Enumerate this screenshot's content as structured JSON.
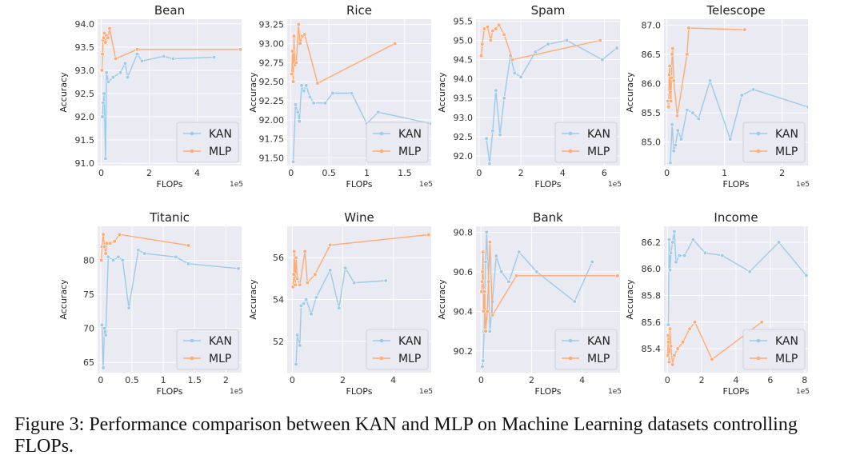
{
  "caption": "Figure 3: Performance comparison between KAN and MLP on Machine Learning datasets controlling FLOPs.",
  "colors": {
    "kan": "#9ecae9",
    "mlp": "#ffab73",
    "panel_bg": "#eaeaf2",
    "grid": "#ffffff"
  },
  "chart_data": [
    {
      "type": "line",
      "title": "Bean",
      "xlabel": "FLOPs",
      "ylabel": "Accuracy",
      "x_scale": "1e5",
      "xlim": [
        -0.15,
        5.85
      ],
      "ylim": [
        90.95,
        94.1
      ],
      "xticks": [
        0,
        2,
        4
      ],
      "yticks": [
        91.0,
        91.5,
        92.0,
        92.5,
        93.0,
        93.5,
        94.0
      ],
      "ytick_labels": [
        "91.0",
        "91.5",
        "92.0",
        "92.5",
        "93.0",
        "93.5",
        "94.0"
      ],
      "legend": "lower-right",
      "series": [
        {
          "name": "KAN",
          "x": [
            0.05,
            0.08,
            0.12,
            0.18,
            0.22,
            0.3,
            0.5,
            0.8,
            1.0,
            1.1,
            1.5,
            1.7,
            2.6,
            3.0,
            4.7
          ],
          "y": [
            92.0,
            92.3,
            92.5,
            91.1,
            92.95,
            92.75,
            92.85,
            92.95,
            93.15,
            92.85,
            93.35,
            93.2,
            93.3,
            93.25,
            93.28
          ]
        },
        {
          "name": "MLP",
          "x": [
            0.03,
            0.05,
            0.07,
            0.1,
            0.13,
            0.18,
            0.22,
            0.28,
            0.35,
            0.6,
            1.5,
            5.8
          ],
          "y": [
            93.0,
            93.35,
            93.65,
            93.7,
            93.8,
            93.6,
            93.75,
            93.7,
            93.9,
            93.25,
            93.45,
            93.45
          ]
        }
      ]
    },
    {
      "type": "line",
      "title": "Rice",
      "xlabel": "FLOPs",
      "ylabel": "Accuracy",
      "x_scale": "1e5",
      "xlim": [
        -0.05,
        1.85
      ],
      "ylim": [
        91.4,
        93.32
      ],
      "xticks": [
        0.0,
        0.5,
        1.0,
        1.5
      ],
      "yticks": [
        91.5,
        91.75,
        92.0,
        92.25,
        92.5,
        92.75,
        93.0,
        93.25
      ],
      "ytick_labels": [
        "91.50",
        "91.75",
        "92.00",
        "92.25",
        "92.50",
        "92.75",
        "93.00",
        "93.25"
      ],
      "legend": "lower-right",
      "series": [
        {
          "name": "KAN",
          "x": [
            0.03,
            0.06,
            0.09,
            0.11,
            0.14,
            0.17,
            0.2,
            0.25,
            0.3,
            0.45,
            0.55,
            0.8,
            1.0,
            1.15,
            1.85
          ],
          "y": [
            91.45,
            92.2,
            92.1,
            91.98,
            92.45,
            92.38,
            92.45,
            92.3,
            92.22,
            92.22,
            92.35,
            92.35,
            91.95,
            92.1,
            91.95
          ]
        },
        {
          "name": "MLP",
          "x": [
            0.01,
            0.02,
            0.03,
            0.04,
            0.05,
            0.07,
            0.1,
            0.12,
            0.15,
            0.18,
            0.35,
            1.37
          ],
          "y": [
            92.6,
            92.9,
            92.5,
            93.1,
            92.72,
            92.75,
            93.25,
            93.0,
            93.1,
            93.12,
            92.48,
            93.0
          ]
        }
      ]
    },
    {
      "type": "line",
      "title": "Spam",
      "xlabel": "FLOPs",
      "ylabel": "Accuracy",
      "x_scale": "1e5",
      "xlim": [
        -0.15,
        6.75
      ],
      "ylim": [
        91.75,
        95.55
      ],
      "xticks": [
        0,
        2,
        4,
        6
      ],
      "yticks": [
        92.0,
        92.5,
        93.0,
        93.5,
        94.0,
        94.5,
        95.0,
        95.5
      ],
      "ytick_labels": [
        "92.0",
        "92.5",
        "93.0",
        "93.5",
        "94.0",
        "94.5",
        "95.0",
        "95.5"
      ],
      "legend": "lower-right",
      "series": [
        {
          "name": "KAN",
          "x": [
            0.35,
            0.5,
            0.65,
            0.8,
            1.0,
            1.2,
            1.5,
            1.7,
            2.0,
            2.7,
            3.3,
            4.2,
            5.9,
            6.6
          ],
          "y": [
            92.45,
            91.8,
            92.65,
            93.7,
            92.55,
            93.5,
            94.6,
            94.15,
            94.05,
            94.7,
            94.9,
            95.0,
            94.5,
            94.8
          ]
        },
        {
          "name": "MLP",
          "x": [
            0.1,
            0.15,
            0.25,
            0.4,
            0.55,
            0.65,
            0.8,
            0.95,
            1.2,
            1.6,
            5.8
          ],
          "y": [
            94.6,
            94.9,
            95.3,
            95.35,
            95.0,
            95.25,
            95.3,
            95.4,
            95.15,
            94.5,
            95.0
          ]
        }
      ]
    },
    {
      "type": "line",
      "title": "Telescope",
      "xlabel": "FLOPs",
      "ylabel": "Accuracy",
      "x_scale": "1e5",
      "xlim": [
        -0.05,
        2.45
      ],
      "ylim": [
        84.6,
        87.1
      ],
      "xticks": [
        0,
        1,
        2
      ],
      "yticks": [
        85.0,
        85.5,
        86.0,
        86.5,
        87.0
      ],
      "ytick_labels": [
        "85.0",
        "85.5",
        "86.0",
        "86.5",
        "87.0"
      ],
      "legend": "lower-right",
      "series": [
        {
          "name": "KAN",
          "x": [
            0.06,
            0.09,
            0.12,
            0.15,
            0.19,
            0.25,
            0.35,
            0.45,
            0.55,
            0.75,
            1.1,
            1.3,
            1.5,
            2.45
          ],
          "y": [
            84.65,
            85.3,
            84.85,
            84.95,
            85.2,
            85.05,
            85.55,
            85.5,
            85.4,
            86.05,
            85.05,
            85.8,
            85.9,
            85.6
          ]
        },
        {
          "name": "MLP",
          "x": [
            0.02,
            0.03,
            0.04,
            0.05,
            0.06,
            0.07,
            0.08,
            0.09,
            0.1,
            0.12,
            0.18,
            0.35,
            0.38,
            1.35
          ],
          "y": [
            85.7,
            85.6,
            86.15,
            86.3,
            85.85,
            85.7,
            86.1,
            86.5,
            86.6,
            86.05,
            85.45,
            86.5,
            86.95,
            86.92
          ]
        }
      ]
    },
    {
      "type": "line",
      "title": "Titanic",
      "xlabel": "FLOPs",
      "ylabel": "Accuracy",
      "x_scale": "1e5",
      "xlim": [
        -0.05,
        2.25
      ],
      "ylim": [
        63.5,
        85.0
      ],
      "xticks": [
        0.0,
        0.5,
        1.0,
        1.5,
        2.0
      ],
      "yticks": [
        65,
        70,
        75,
        80
      ],
      "ytick_labels": [
        "65",
        "70",
        "75",
        "80"
      ],
      "legend": "lower-right",
      "series": [
        {
          "name": "KAN",
          "x": [
            0.02,
            0.04,
            0.06,
            0.08,
            0.12,
            0.2,
            0.28,
            0.35,
            0.45,
            0.6,
            0.7,
            1.2,
            1.4,
            2.2
          ],
          "y": [
            70.5,
            64.2,
            70.0,
            69.0,
            80.5,
            80.0,
            80.5,
            80.0,
            73.0,
            81.5,
            81.0,
            80.5,
            79.5,
            78.8
          ]
        },
        {
          "name": "MLP",
          "x": [
            0.01,
            0.02,
            0.04,
            0.06,
            0.08,
            0.1,
            0.15,
            0.22,
            0.3,
            1.4
          ],
          "y": [
            80.0,
            82.0,
            83.8,
            82.0,
            81.0,
            82.5,
            82.5,
            82.8,
            83.8,
            82.2
          ]
        }
      ]
    },
    {
      "type": "line",
      "title": "Wine",
      "xlabel": "FLOPs",
      "ylabel": "Accuracy",
      "x_scale": "1e5",
      "xlim": [
        -0.2,
        5.5
      ],
      "ylim": [
        50.5,
        57.5
      ],
      "xticks": [
        0,
        2,
        4
      ],
      "yticks": [
        52,
        54,
        56
      ],
      "ytick_labels": [
        "52",
        "54",
        "56"
      ],
      "legend": "lower-right",
      "series": [
        {
          "name": "KAN",
          "x": [
            0.15,
            0.2,
            0.3,
            0.35,
            0.45,
            0.55,
            0.75,
            0.95,
            1.5,
            1.85,
            2.1,
            2.45,
            3.7
          ],
          "y": [
            50.9,
            52.3,
            51.8,
            53.7,
            53.8,
            54.0,
            53.3,
            54.1,
            55.4,
            53.6,
            55.5,
            54.8,
            54.9
          ]
        },
        {
          "name": "MLP",
          "x": [
            0.03,
            0.06,
            0.08,
            0.12,
            0.15,
            0.2,
            0.3,
            0.5,
            0.6,
            0.9,
            1.5,
            5.4
          ],
          "y": [
            54.6,
            55.2,
            56.3,
            54.7,
            56.0,
            55.0,
            54.7,
            56.3,
            54.8,
            55.2,
            56.6,
            57.1
          ]
        }
      ]
    },
    {
      "type": "line",
      "title": "Bank",
      "xlabel": "FLOPs",
      "ylabel": "Accuracy",
      "x_scale": "1e5",
      "xlim": [
        -0.2,
        5.5
      ],
      "ylim": [
        90.09,
        90.83
      ],
      "xticks": [
        0,
        2,
        4
      ],
      "yticks": [
        90.2,
        90.4,
        90.6,
        90.8
      ],
      "ytick_labels": [
        "90.2",
        "90.4",
        "90.6",
        "90.8"
      ],
      "legend": "lower-right",
      "series": [
        {
          "name": "KAN",
          "x": [
            0.05,
            0.08,
            0.12,
            0.18,
            0.22,
            0.3,
            0.35,
            0.45,
            0.6,
            0.8,
            1.1,
            1.5,
            2.2,
            3.7,
            4.4
          ],
          "y": [
            90.12,
            90.15,
            90.3,
            90.65,
            90.8,
            90.55,
            90.3,
            90.45,
            90.68,
            90.6,
            90.55,
            90.7,
            90.6,
            90.45,
            90.65
          ]
        },
        {
          "name": "MLP",
          "x": [
            0.02,
            0.04,
            0.06,
            0.08,
            0.1,
            0.14,
            0.18,
            0.25,
            0.35,
            0.45,
            1.4,
            5.4
          ],
          "y": [
            90.5,
            90.55,
            90.6,
            90.7,
            90.4,
            90.5,
            90.3,
            90.4,
            90.75,
            90.38,
            90.58,
            90.58
          ]
        }
      ]
    },
    {
      "type": "line",
      "title": "Income",
      "xlabel": "FLOPs",
      "ylabel": "Accuracy",
      "x_scale": "1e5",
      "xlim": [
        -0.2,
        8.2
      ],
      "ylim": [
        85.22,
        86.32
      ],
      "xticks": [
        0,
        2,
        4,
        6,
        8
      ],
      "yticks": [
        85.4,
        85.6,
        85.8,
        86.0,
        86.2
      ],
      "ytick_labels": [
        "85.4",
        "85.6",
        "85.8",
        "86.0",
        "86.2"
      ],
      "legend": "lower-right",
      "series": [
        {
          "name": "KAN",
          "x": [
            0.05,
            0.1,
            0.15,
            0.2,
            0.3,
            0.4,
            0.5,
            0.7,
            1.0,
            1.5,
            2.2,
            3.2,
            4.8,
            6.5,
            8.1
          ],
          "y": [
            85.58,
            86.22,
            85.99,
            86.12,
            86.2,
            86.28,
            86.05,
            86.1,
            86.1,
            86.22,
            86.12,
            86.1,
            85.98,
            86.2,
            85.95
          ]
        },
        {
          "name": "MLP",
          "x": [
            0.02,
            0.04,
            0.06,
            0.1,
            0.15,
            0.2,
            0.3,
            0.4,
            0.6,
            0.9,
            1.3,
            1.6,
            2.6,
            5.5
          ],
          "y": [
            85.35,
            85.5,
            85.45,
            85.3,
            85.55,
            85.42,
            85.28,
            85.35,
            85.4,
            85.45,
            85.55,
            85.6,
            85.32,
            85.6
          ]
        }
      ]
    }
  ]
}
